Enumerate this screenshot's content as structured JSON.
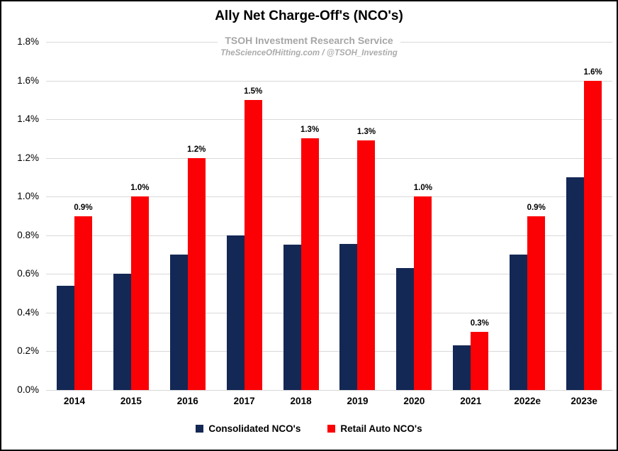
{
  "window": {
    "background": "#FFFFFF",
    "border_color": "#000000"
  },
  "chart_data": {
    "type": "bar",
    "title": "Ally Net Charge-Off's (NCO's)",
    "subtitle": "TSOH Investment Research Service",
    "watermark": "TheScienceOfHitting.com / @TSOH_Investing",
    "categories": [
      "2014",
      "2015",
      "2016",
      "2017",
      "2018",
      "2019",
      "2020",
      "2021",
      "2022e",
      "2023e"
    ],
    "series": [
      {
        "name": "Consolidated NCO's",
        "color": "#142855",
        "values": [
          0.54,
          0.6,
          0.7,
          0.8,
          0.75,
          0.755,
          0.63,
          0.23,
          0.7,
          1.1
        ]
      },
      {
        "name": "Retail Auto NCO's",
        "color": "#FB0005",
        "values": [
          0.9,
          1.0,
          1.2,
          1.5,
          1.3,
          1.29,
          1.0,
          0.3,
          0.9,
          1.6
        ],
        "data_labels": [
          "0.9%",
          "1.0%",
          "1.2%",
          "1.5%",
          "1.3%",
          "1.3%",
          "1.0%",
          "0.3%",
          "0.9%",
          "1.6%"
        ]
      }
    ],
    "ylim": [
      0,
      1.8
    ],
    "ytick_step": 0.2,
    "ytick_labels": [
      "0.0%",
      "0.2%",
      "0.4%",
      "0.6%",
      "0.8%",
      "1.0%",
      "1.2%",
      "1.4%",
      "1.6%",
      "1.8%"
    ],
    "grid": true,
    "gridline_color": "#D9D9D9",
    "axis_line_color": "#D9D9D9",
    "subtitle_color": "#A6A6A6",
    "legend_position": "bottom"
  }
}
